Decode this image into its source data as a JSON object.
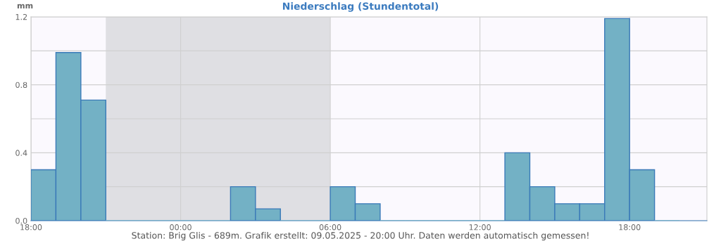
{
  "chart_data": {
    "type": "histogram",
    "title": "Niederschlag (Stundentotal)",
    "ylabel": "mm",
    "annotations": [
      "Station: Brig Glis - 689m. Grafik erstellt: 09.05.2025 - 20:00 Uhr. Daten werden automatisch gemessen!"
    ],
    "bins": [
      "2025-05-08T18:00",
      "2025-05-08T19:00",
      "2025-05-08T20:00",
      "2025-05-08T21:00",
      "2025-05-08T22:00",
      "2025-05-08T23:00",
      "2025-05-09T00:00",
      "2025-05-09T01:00",
      "2025-05-09T02:00",
      "2025-05-09T03:00",
      "2025-05-09T04:00",
      "2025-05-09T05:00",
      "2025-05-09T06:00",
      "2025-05-09T07:00",
      "2025-05-09T08:00",
      "2025-05-09T09:00",
      "2025-05-09T10:00",
      "2025-05-09T11:00",
      "2025-05-09T12:00",
      "2025-05-09T13:00",
      "2025-05-09T14:00",
      "2025-05-09T15:00",
      "2025-05-09T16:00",
      "2025-05-09T17:00",
      "2025-05-09T18:00",
      "2025-05-09T19:00",
      "2025-05-09T20:00"
    ],
    "values": [
      0.3,
      0.99,
      0.71,
      0,
      0,
      0,
      0,
      0,
      0.2,
      0.07,
      0,
      0,
      0.2,
      0.1,
      0,
      0,
      0,
      0,
      0,
      0.4,
      0.2,
      0.1,
      0.1,
      1.19,
      0.3,
      0
    ],
    "color": "#73b1c5",
    "xlim": [
      "2025-05-08T18:00",
      "2025-05-09T21:06"
    ],
    "xticks": [
      {
        "value": "2025-05-08T18:00",
        "label": "18:00"
      },
      {
        "value": "2025-05-09T00:00",
        "label": "00:00"
      },
      {
        "value": "2025-05-09T06:00",
        "label": "06:00"
      },
      {
        "value": "2025-05-09T12:00",
        "label": "12:00"
      },
      {
        "value": "2025-05-09T18:00",
        "label": "18:00"
      }
    ],
    "ylim": [
      0,
      1.2
    ],
    "yticks": [
      {
        "value": 0,
        "label": "0.0"
      },
      {
        "value": 0.2,
        "label": null
      },
      {
        "value": 0.4,
        "label": "0.4"
      },
      {
        "value": 0.6,
        "label": null
      },
      {
        "value": 0.8,
        "label": "0.8"
      },
      {
        "value": 1.0,
        "label": null
      },
      {
        "value": 1.2,
        "label": "1.2"
      }
    ],
    "bands": [
      {
        "axis": "x",
        "from": "2025-05-08T21:00",
        "to": "2025-05-09T06:00",
        "color": "#dfdfe3"
      }
    ],
    "grid": true,
    "legend": false
  }
}
